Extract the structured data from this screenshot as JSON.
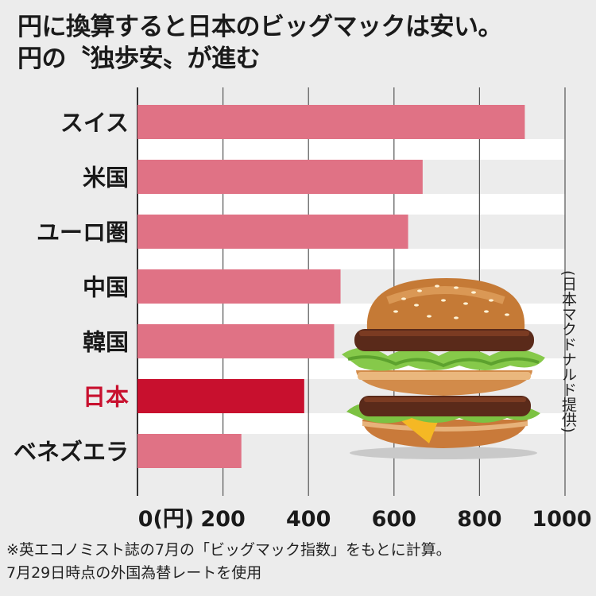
{
  "header": {
    "title_line1": "円に換算すると日本のビッグマックは安い。",
    "title_line2": "円の〝独歩安〟が進む"
  },
  "colors": {
    "bar": "#e07285",
    "bar_highlight": "#c8102e",
    "highlight_label": "#c8102e",
    "grid": "#555555",
    "band": "#ffffff"
  },
  "chart_data": {
    "type": "bar",
    "orientation": "horizontal",
    "categories": [
      "スイス",
      "米国",
      "ユーロ圏",
      "中国",
      "韓国",
      "日本",
      "ベネズエラ"
    ],
    "values": [
      906,
      667,
      633,
      475,
      460,
      390,
      243
    ],
    "highlight_category": "日本",
    "xlim": [
      0,
      1000
    ],
    "x_ticks": [
      0,
      200,
      400,
      600,
      800,
      1000
    ],
    "x_tick_labels": [
      "0(円)",
      "200",
      "400",
      "600",
      "800",
      "1000"
    ],
    "grid": true,
    "source_label": "(日本マクドナルド提供)",
    "image": "big-mac-photo"
  },
  "footnote": {
    "line1": "※英エコノミスト誌の7月の「ビッグマック指数」をもとに計算。",
    "line2": "7月29日時点の外国為替レートを使用"
  }
}
